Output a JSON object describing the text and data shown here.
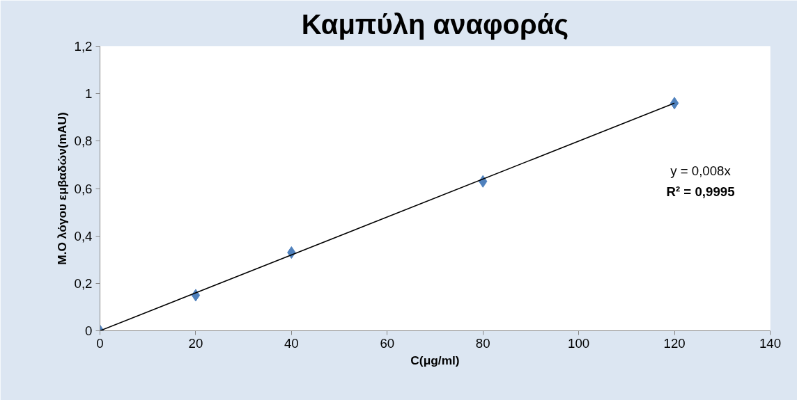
{
  "chart_data": {
    "type": "scatter",
    "title": "Καμπύλη αναφοράς",
    "xlabel": "C(μg/ml)",
    "ylabel": "Μ.Ο λόγου εμβαδών(mAU)",
    "x": [
      0,
      20,
      40,
      80,
      120
    ],
    "series": [
      {
        "color": "#4f81bd",
        "values": [
          0,
          0.15,
          0.33,
          0.63,
          0.96
        ],
        "marker": "diamond"
      },
      {
        "type": "line",
        "color": "#000000",
        "x": [
          0,
          120
        ],
        "values": [
          0,
          0.96
        ],
        "marker": "none",
        "line_style": "solid"
      }
    ],
    "xlim": [
      0,
      140
    ],
    "xticks": [
      0,
      20,
      40,
      60,
      80,
      100,
      120,
      140
    ],
    "ylim": [
      0,
      1.2
    ],
    "yticks": [
      0,
      {
        "value": 0.2,
        "label": "0,2"
      },
      {
        "value": 0.4,
        "label": "0,4"
      },
      {
        "value": 0.6,
        "label": "0,6"
      },
      {
        "value": 0.8,
        "label": "0,8"
      },
      1,
      {
        "value": 1.2,
        "label": "1,2"
      }
    ],
    "annotations": [
      "y = 0,008x",
      "R² = 0,9995"
    ],
    "grid": false
  }
}
